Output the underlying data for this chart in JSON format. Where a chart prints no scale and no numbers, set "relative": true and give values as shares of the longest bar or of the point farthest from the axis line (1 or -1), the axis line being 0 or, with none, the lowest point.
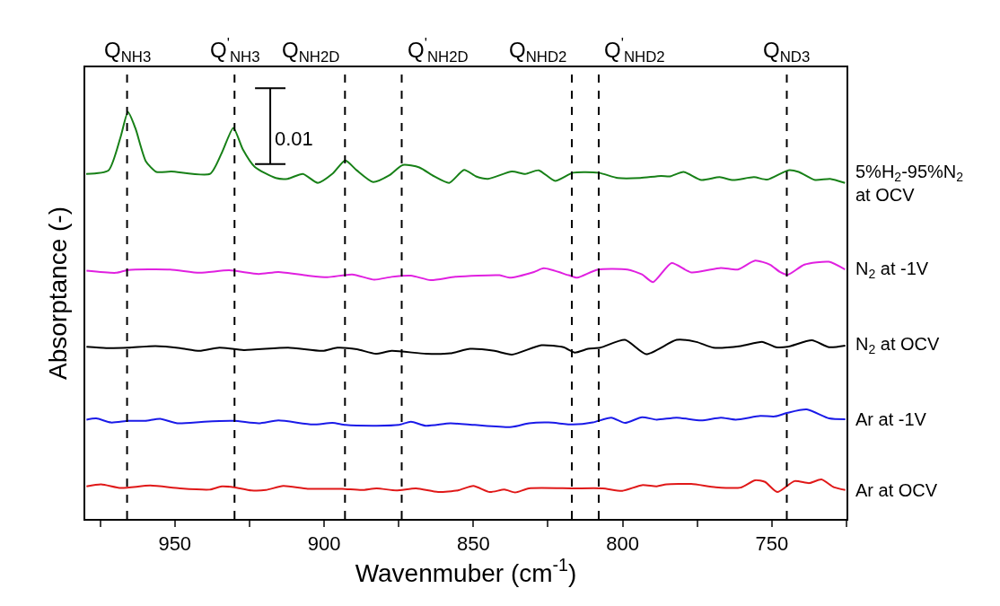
{
  "chart_data": {
    "type": "line",
    "relative": true,
    "xlabel": "Wavenmuber (cm$^{-1}$)",
    "ylabel": "Absorptance (-)",
    "xlim": [
      980,
      725
    ],
    "xticks": [
      {
        "value": 975,
        "label": null
      },
      950,
      {
        "value": 925,
        "label": null
      },
      900,
      {
        "value": 875,
        "label": null
      },
      850,
      {
        "value": 825,
        "label": null
      },
      800,
      {
        "value": 775,
        "label": null
      },
      750,
      {
        "value": 725,
        "label": null
      }
    ],
    "legend": false,
    "marker": "none",
    "line_style": "solid",
    "annotations": [
      "0.01"
    ],
    "ref_lines": [
      {
        "axis": "x",
        "value": 966,
        "label": "Q$_{NH3}$",
        "color": "#000000",
        "line_style": "dashed"
      },
      {
        "axis": "x",
        "value": 930,
        "label": "Q$^{'}$$_{NH3}$",
        "color": "#000000",
        "line_style": "dashed"
      },
      {
        "axis": "x",
        "value": 893,
        "label": "Q$_{NH2D}$",
        "color": "#000000",
        "line_style": "dashed"
      },
      {
        "axis": "x",
        "value": 874,
        "label": "Q$^{'}$$_{NH2D}$",
        "color": "#000000",
        "line_style": "dashed"
      },
      {
        "axis": "x",
        "value": 817,
        "label": "Q$_{NHD2}$",
        "color": "#000000",
        "line_style": "dashed"
      },
      {
        "axis": "x",
        "value": 808,
        "label": "Q$^{'}$$_{NHD2}$",
        "color": "#000000",
        "line_style": "dashed"
      },
      {
        "axis": "x",
        "value": 745,
        "label": "Q$_{ND3}$",
        "color": "#000000",
        "line_style": "dashed"
      }
    ],
    "series": [
      {
        "name": "5%H$_{2}$-95%N$_{2}$\nat OCV",
        "color": "#178017",
        "x": [
          979.7,
          972.2,
          968.2,
          965.7,
          963.2,
          959.7,
          956.2,
          951.2,
          938.2,
          934.2,
          930.4,
          927.2,
          923.2,
          916.2,
          912.2,
          907.1,
          902.1,
          897.1,
          892.9,
          889.1,
          883.6,
          878.1,
          873.6,
          868.1,
          863.1,
          858.1,
          853.1,
          849.1,
          845.1,
          837.1,
          832.6,
          828.1,
          822.6,
          816.6,
          808.1,
          801.6,
          794.1,
          787.1,
          784.1,
          779.6,
          773.6,
          767.5,
          763.0,
          756.0,
          751.5,
          744.5,
          741.0,
          735.5,
          730.5,
          725.5
        ],
        "values": [
          0.848,
          0.857,
          0.938,
          1,
          0.96,
          0.879,
          0.853,
          0.854,
          0.848,
          0.901,
          0.961,
          0.908,
          0.865,
          0.838,
          0.836,
          0.848,
          0.826,
          0.849,
          0.881,
          0.857,
          0.828,
          0.845,
          0.87,
          0.864,
          0.842,
          0.826,
          0.858,
          0.842,
          0.836,
          0.854,
          0.848,
          0.857,
          0.831,
          0.851,
          0.851,
          0.838,
          0.838,
          0.843,
          0.842,
          0.853,
          0.833,
          0.84,
          0.833,
          0.84,
          0.834,
          0.857,
          0.853,
          0.833,
          0.836,
          0.826
        ]
      },
      {
        "name": "N$_{2}$ at -1V",
        "color": "#e020e0",
        "x": [
          979.6,
          969.7,
          965.6,
          951.6,
          941.7,
          931.8,
          921.9,
          915.3,
          905.5,
          898.9,
          890.6,
          883.2,
          877.4,
          870.9,
          864.3,
          856.0,
          841.2,
          837.9,
          829.7,
          826.4,
          818.1,
          815.2,
          808.3,
          798.4,
          793.5,
          789.8,
          783.6,
          777.0,
          767.1,
          761.4,
          755.6,
          750.6,
          747.3,
          744.7,
          739.1,
          730.9,
          725.5
        ],
        "values": [
          0.61,
          0.605,
          0.612,
          0.613,
          0.605,
          0.611,
          0.602,
          0.607,
          0.598,
          0.594,
          0.601,
          0.588,
          0.595,
          0.598,
          0.587,
          0.595,
          0.599,
          0.593,
          0.607,
          0.616,
          0.599,
          0.593,
          0.613,
          0.613,
          0.601,
          0.582,
          0.629,
          0.606,
          0.617,
          0.613,
          0.635,
          0.625,
          0.607,
          0.6,
          0.625,
          0.632,
          0.613
        ]
      },
      {
        "name": "N$_{2}$ at OCV",
        "color": "#000000",
        "x": [
          979.6,
          973.0,
          965.6,
          956.5,
          948.3,
          941.7,
          935.1,
          926.9,
          912.0,
          900.5,
          895.6,
          889.0,
          882.7,
          877.4,
          865.9,
          857.7,
          851.1,
          842.9,
          837.1,
          827.2,
          819.8,
          816.0,
          811.6,
          807.5,
          799.2,
          792.1,
          781.9,
          775.3,
          769.6,
          760.5,
          753.1,
          748.6,
          744.7,
          736.6,
          730.8,
          725.4
        ],
        "values": [
          0.423,
          0.42,
          0.421,
          0.425,
          0.42,
          0.413,
          0.421,
          0.415,
          0.421,
          0.413,
          0.421,
          0.417,
          0.406,
          0.413,
          0.406,
          0.407,
          0.418,
          0.413,
          0.404,
          0.427,
          0.422,
          0.409,
          0.418,
          0.421,
          0.44,
          0.405,
          0.44,
          0.435,
          0.421,
          0.425,
          0.435,
          0.422,
          0.423,
          0.439,
          0.422,
          0.426
        ]
      },
      {
        "name": "Ar at -1V",
        "color": "#1a1ae8",
        "x": [
          979.6,
          976.3,
          971.4,
          965.6,
          959.9,
          954.9,
          949.1,
          940.1,
          930.2,
          921.9,
          915.3,
          903.8,
          897.2,
          892.8,
          882.4,
          875.0,
          870.9,
          865.9,
          857.7,
          849.5,
          837.1,
          831.4,
          824.8,
          816.6,
          810.0,
          803.8,
          799.2,
          793.5,
          788.6,
          781.9,
          773.7,
          767.1,
          762.1,
          753.9,
          749.0,
          744.7,
          738.3,
          730.8,
          725.4
        ],
        "values": [
          0.244,
          0.247,
          0.237,
          0.241,
          0.241,
          0.246,
          0.235,
          0.239,
          0.241,
          0.235,
          0.242,
          0.232,
          0.236,
          0.231,
          0.229,
          0.231,
          0.239,
          0.229,
          0.235,
          0.231,
          0.226,
          0.235,
          0.237,
          0.232,
          0.237,
          0.249,
          0.236,
          0.25,
          0.244,
          0.249,
          0.242,
          0.249,
          0.244,
          0.253,
          0.252,
          0.261,
          0.269,
          0.247,
          0.245
        ]
      },
      {
        "name": "Ar at OCV",
        "color": "#e01818",
        "x": [
          979.6,
          974.7,
          968.1,
          958.2,
          948.3,
          938.4,
          934.3,
          930.2,
          924.4,
          919.5,
          913.7,
          905.5,
          894.0,
          887.4,
          882.4,
          875.8,
          869.2,
          861.8,
          855.2,
          850.0,
          844.5,
          839.6,
          836.0,
          831.4,
          816.6,
          806.7,
          800.1,
          793.5,
          788.6,
          785.3,
          777.0,
          768.8,
          760.5,
          755.6,
          752.3,
          748.2,
          742.4,
          737.5,
          733.4,
          729.3,
          725.4
        ],
        "values": [
          0.08,
          0.085,
          0.076,
          0.082,
          0.075,
          0.072,
          0.08,
          0.078,
          0.07,
          0.071,
          0.081,
          0.074,
          0.074,
          0.071,
          0.075,
          0.07,
          0.075,
          0.066,
          0.07,
          0.081,
          0.066,
          0.072,
          0.065,
          0.075,
          0.075,
          0.075,
          0.069,
          0.083,
          0.08,
          0.085,
          0.086,
          0.078,
          0.077,
          0.095,
          0.091,
          0.066,
          0.093,
          0.088,
          0.097,
          0.078,
          0.071
        ]
      }
    ]
  }
}
